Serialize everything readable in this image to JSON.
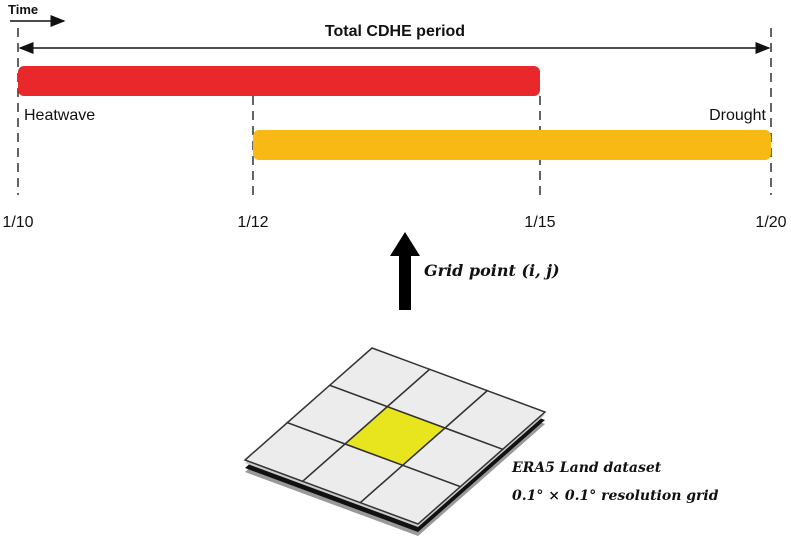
{
  "header": {
    "time_label": "Time",
    "period_label": "Total CDHE period"
  },
  "bars": [
    {
      "label": "Heatwave"
    },
    {
      "label": "Drought"
    }
  ],
  "dates": [
    "1/10",
    "1/12",
    "1/15",
    "1/20"
  ],
  "arrow_label": "Grid point (i, j)",
  "grid": {
    "title": "ERA5 Land dataset",
    "resolution": "0.1° × 0.1° resolution grid"
  }
}
